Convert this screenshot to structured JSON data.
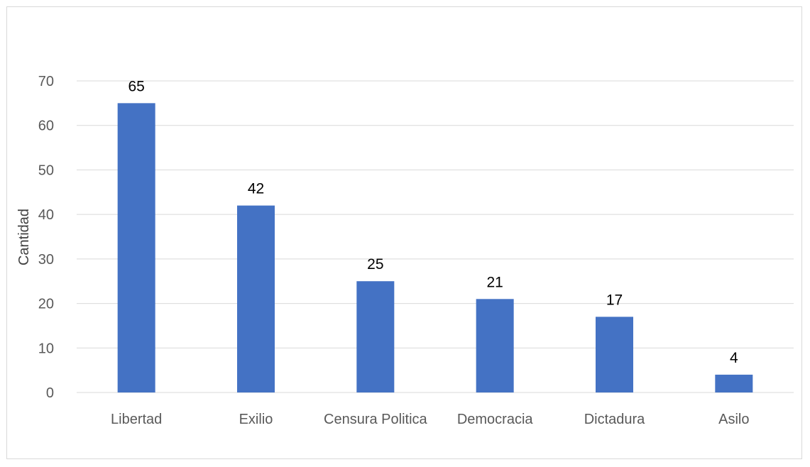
{
  "chart_data": {
    "type": "bar",
    "categories": [
      "Libertad",
      "Exilio",
      "Censura Politica",
      "Democracia",
      "Dictadura",
      "Asilo"
    ],
    "values": [
      65,
      42,
      25,
      21,
      17,
      4
    ],
    "title": "",
    "xlabel": "",
    "ylabel": "Cantidad",
    "ylim": [
      0,
      70
    ],
    "yticks": [
      0,
      10,
      20,
      30,
      40,
      50,
      60,
      70
    ],
    "grid": true,
    "legend": "none",
    "data_labels": true,
    "bar_color": "#4472c4"
  },
  "colors": {
    "bar": "#4472c4",
    "gridline": "#d9d9d9",
    "border": "#d9d9d9",
    "tick_text": "#595959",
    "label_text": "#000000"
  }
}
